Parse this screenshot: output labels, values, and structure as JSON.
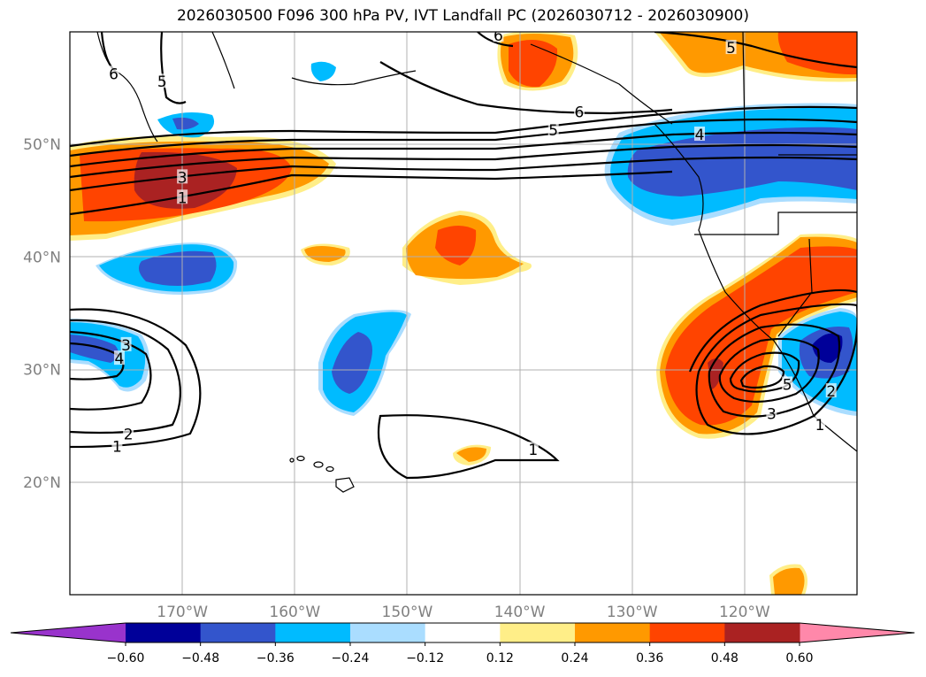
{
  "chart_data": {
    "type": "filled-contour-map",
    "title": "2026030500 F096 300 hPa PV, IVT Landfall PC (2026030712 - 2026030900)",
    "region": "North Pacific",
    "xlim": [
      -180,
      -110
    ],
    "ylim": [
      10,
      60
    ],
    "grid": true,
    "lat_ticks": [
      {
        "value": 20,
        "label": "20°N"
      },
      {
        "value": 30,
        "label": "30°N"
      },
      {
        "value": 40,
        "label": "40°N"
      },
      {
        "value": 50,
        "label": "50°N"
      }
    ],
    "lon_ticks": [
      {
        "value": -170,
        "label": "170°W"
      },
      {
        "value": -160,
        "label": "160°W"
      },
      {
        "value": -150,
        "label": "150°W"
      },
      {
        "value": -140,
        "label": "140°W"
      },
      {
        "value": -130,
        "label": "130°W"
      },
      {
        "value": -120,
        "label": "120°W"
      }
    ],
    "colorbar": {
      "extend": "both",
      "min_color": "#9933cc",
      "max_color": "#ff88aa",
      "levels": [
        -0.6,
        -0.48,
        -0.36,
        -0.24,
        -0.12,
        0.12,
        0.24,
        0.36,
        0.48,
        0.6
      ],
      "tick_labels": [
        "−0.60",
        "−0.48",
        "−0.36",
        "−0.24",
        "−0.12",
        "0.12",
        "0.24",
        "0.36",
        "0.48",
        "0.60"
      ],
      "colors": [
        "#000099",
        "#3355cc",
        "#00bbff",
        "#aaddff",
        "#ffffff",
        "#ffee88",
        "#ff9900",
        "#ff4400",
        "#aa2222"
      ]
    },
    "contour_labels": [
      {
        "text": "6",
        "lon": -176.1,
        "lat": 56.2
      },
      {
        "text": "5",
        "lon": -171.8,
        "lat": 55.5
      },
      {
        "text": "6",
        "lon": -141.9,
        "lat": 59.6
      },
      {
        "text": "6",
        "lon": -134.7,
        "lat": 52.8
      },
      {
        "text": "5",
        "lon": -137.0,
        "lat": 51.2
      },
      {
        "text": "5",
        "lon": -121.2,
        "lat": 58.5
      },
      {
        "text": "4",
        "lon": -124.0,
        "lat": 50.8
      },
      {
        "text": "3",
        "lon": -170.0,
        "lat": 47.0
      },
      {
        "text": "1",
        "lon": -170.0,
        "lat": 45.2
      },
      {
        "text": "3",
        "lon": -175.0,
        "lat": 32.1
      },
      {
        "text": "4",
        "lon": -175.6,
        "lat": 30.9
      },
      {
        "text": "2",
        "lon": -174.8,
        "lat": 24.2
      },
      {
        "text": "1",
        "lon": -175.8,
        "lat": 23.1
      },
      {
        "text": "1",
        "lon": -138.8,
        "lat": 22.8
      },
      {
        "text": "5",
        "lon": -116.2,
        "lat": 28.6
      },
      {
        "text": "3",
        "lon": -117.6,
        "lat": 26.0
      },
      {
        "text": "1",
        "lon": -113.3,
        "lat": 25.0
      },
      {
        "text": "2",
        "lon": -112.3,
        "lat": 28.0
      }
    ]
  }
}
